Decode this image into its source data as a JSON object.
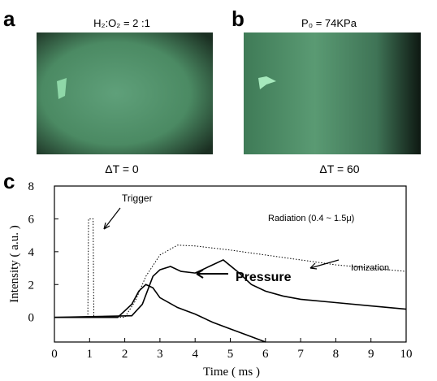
{
  "panel_a": {
    "label": "a",
    "title": "H₂:O₂ = 2 :1",
    "caption": "ΔT = 0"
  },
  "panel_b": {
    "label": "b",
    "title": "P₀ = 74KPa",
    "caption": "ΔT = 60"
  },
  "chart_data": {
    "type": "line",
    "label": "c",
    "x_label": "Time ( ms )",
    "y_label": "Intensity ( a.u. )",
    "xlim": [
      0,
      10
    ],
    "ylim": [
      -1.5,
      8
    ],
    "xticks": [
      0,
      1,
      2,
      3,
      4,
      5,
      6,
      7,
      8,
      9,
      10
    ],
    "yticks": [
      0,
      2,
      4,
      6,
      8
    ],
    "series": [
      {
        "name": "Trigger",
        "color": "#000000",
        "dashed": true,
        "x": [
          0.95,
          0.97,
          1.1,
          1.12
        ],
        "values": [
          0,
          6,
          6,
          0
        ]
      },
      {
        "name": "Radiation (0.4 ~ 1.5μ)",
        "color": "#000000",
        "dashed": true,
        "x": [
          0,
          2,
          2.3,
          2.6,
          3,
          3.5,
          4,
          5,
          6,
          7,
          8,
          9,
          10
        ],
        "values": [
          0,
          0,
          1,
          2.5,
          3.8,
          4.4,
          4.35,
          4.1,
          3.8,
          3.5,
          3.2,
          3.0,
          2.8
        ]
      },
      {
        "name": "Pressure",
        "color": "#000000",
        "dashed": false,
        "x": [
          0,
          1.8,
          2.2,
          2.4,
          2.6,
          2.8,
          3,
          3.5,
          4,
          4.5,
          5,
          5.5,
          6
        ],
        "values": [
          0,
          0,
          0.8,
          1.6,
          2.0,
          1.8,
          1.2,
          0.6,
          0.2,
          -0.3,
          -0.7,
          -1.1,
          -1.5
        ]
      },
      {
        "name": "Ionization",
        "color": "#000000",
        "dashed": false,
        "x": [
          0,
          2.2,
          2.5,
          2.8,
          3,
          3.3,
          3.6,
          4,
          4.5,
          4.8,
          5.2,
          5.6,
          6,
          6.5,
          7,
          8,
          9,
          10
        ],
        "values": [
          0,
          0.1,
          0.8,
          2.5,
          2.9,
          3.1,
          2.8,
          2.7,
          3.2,
          3.5,
          2.8,
          2.0,
          1.6,
          1.3,
          1.1,
          0.9,
          0.7,
          0.5
        ]
      }
    ]
  }
}
